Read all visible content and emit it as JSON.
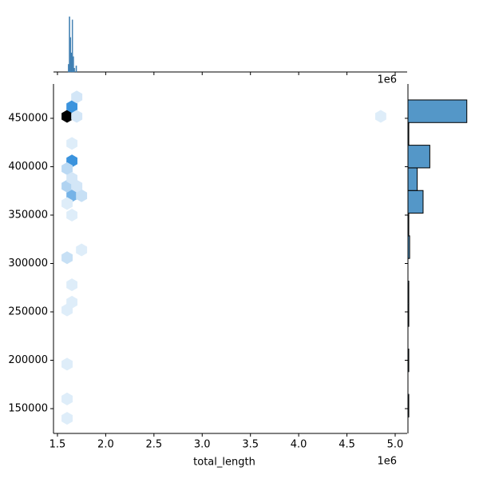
{
  "chart_data": {
    "type": "hexbin",
    "xlabel": "total_length",
    "x_offset": "1e6",
    "x": [
      1.6,
      1.65,
      1.65,
      1.65,
      1.6,
      1.6,
      1.7,
      1.7,
      1.75,
      1.7,
      1.65,
      1.6,
      1.75,
      1.65,
      1.65,
      1.6,
      1.6,
      1.6,
      4.85,
      1.6,
      1.65,
      1.65,
      1.6
    ],
    "y": [
      452000,
      462000,
      406000,
      370000,
      380000,
      398000,
      472000,
      452000,
      370000,
      380000,
      388000,
      306000,
      314000,
      260000,
      278000,
      196000,
      160000,
      140000,
      452000,
      362000,
      350000,
      424000,
      252000
    ],
    "counts": [
      30,
      15,
      15,
      10,
      5,
      4,
      2,
      2,
      3,
      2,
      2,
      3,
      1,
      1,
      1,
      1,
      1,
      1,
      1,
      1,
      1,
      1,
      1
    ],
    "cmap": [
      "#eaf3fb",
      "#3b93dd",
      "#000000"
    ],
    "xlim": [
      1.459,
      5.124
    ],
    "ylim": [
      124400,
      485500
    ],
    "xticks": [
      1.5,
      {
        "value": 2,
        "label": "2.0"
      },
      2.5,
      {
        "value": 3,
        "label": "3.0"
      },
      3.5,
      {
        "value": 4,
        "label": "4.0"
      },
      4.5,
      {
        "value": 5,
        "label": "5.0"
      }
    ],
    "yticks": [
      150000,
      200000,
      250000,
      300000,
      350000,
      400000,
      450000
    ],
    "marginal_x": {
      "color": "#3f7fb2",
      "bins": [
        1.6,
        1.61,
        1.62,
        1.63,
        1.64,
        1.65,
        1.66,
        1.67,
        1.68,
        1.69,
        1.7,
        1.71,
        1.72
      ],
      "counts": [
        0,
        10,
        72,
        45,
        25,
        68,
        20,
        5,
        0,
        8,
        0,
        0
      ],
      "ylim": [
        0,
        75
      ]
    },
    "marginal_y": {
      "color": "#5497c8",
      "bins": [
        141400,
        164800,
        188200,
        211600,
        235000,
        258400,
        281800,
        305200,
        328600,
        352000,
        375400,
        398800,
        422200,
        445600,
        469000
      ],
      "counts": [
        1,
        0,
        1,
        0,
        1,
        1,
        0,
        2,
        1,
        18,
        11,
        26,
        1,
        70
      ],
      "xlim": [
        0,
        75
      ]
    }
  }
}
